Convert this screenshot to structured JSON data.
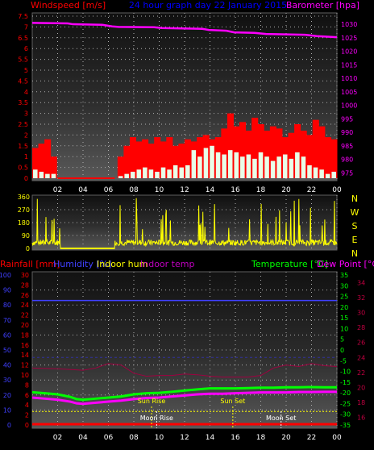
{
  "header": {
    "left": "Windspeed [m/s]",
    "center": "24 hour graph day  22 January 2015",
    "right": "Barometer [hpa]"
  },
  "colors": {
    "wind": "#ff0000",
    "barometer": "#ff00ff",
    "title": "#0000ff",
    "direction": "#ffff00",
    "humidity": "#4040ff",
    "temperature": "#00ff00",
    "dewpoint": "#ff00ff",
    "indoor_temp": "#c000c0",
    "indoor_hum": "#ffff00",
    "rain": "#ff0000",
    "sun": "#ffff00",
    "moon": "#ffffff"
  },
  "time_ticks": [
    "02",
    "04",
    "06",
    "08",
    "10",
    "12",
    "14",
    "16",
    "18",
    "20",
    "22",
    "00"
  ],
  "chart_data": [
    {
      "type": "bar",
      "name": "wind",
      "y_ticks": [
        "0",
        "0.5",
        "1",
        "1.5",
        "2",
        "2.5",
        "3",
        "3.5",
        "4",
        "4.5",
        "5",
        "5.5",
        "6",
        "6.5",
        "7",
        "7.5"
      ],
      "ylim": [
        0,
        7.5
      ],
      "y2_ticks": [
        "975",
        "980",
        "985",
        "990",
        "995",
        "1000",
        "1005",
        "1010",
        "1015",
        "1020",
        "1025",
        "1030"
      ],
      "y2lim": [
        973,
        1033
      ],
      "wind_gust": [
        1.4,
        1.6,
        1.8,
        1.0,
        0,
        0,
        0,
        0,
        0,
        0,
        0,
        0,
        0,
        0,
        1.0,
        1.5,
        1.9,
        1.7,
        1.8,
        1.6,
        1.9,
        1.7,
        1.9,
        1.5,
        1.6,
        1.8,
        1.7,
        1.9,
        2.0,
        1.8,
        1.9,
        2.3,
        3.0,
        2.4,
        2.6,
        2.2,
        2.8,
        2.5,
        2.2,
        2.4,
        2.3,
        1.9,
        2.1,
        2.5,
        2.2,
        2.0,
        2.7,
        2.4,
        1.9,
        1.8
      ],
      "wind_avg": [
        0.4,
        0.3,
        0.2,
        0.2,
        0,
        0,
        0,
        0,
        0,
        0,
        0,
        0,
        0,
        0,
        0.1,
        0.2,
        0.3,
        0.4,
        0.5,
        0.4,
        0.3,
        0.5,
        0.4,
        0.6,
        0.5,
        0.6,
        1.3,
        1.0,
        1.4,
        1.5,
        1.2,
        1.1,
        1.3,
        1.2,
        1.0,
        1.1,
        0.9,
        1.2,
        1.0,
        0.8,
        1.0,
        1.1,
        0.9,
        1.2,
        1.0,
        0.6,
        0.5,
        0.4,
        0.2,
        0.3
      ],
      "barometer_x": [
        0,
        2.8,
        3.2,
        5.5,
        6.3,
        6.8,
        9.6,
        10.2,
        13.4,
        13.9,
        15.3,
        15.9,
        17.5,
        18.4,
        21.5,
        22.4,
        24
      ],
      "barometer_y": [
        1030.5,
        1030.3,
        1030.0,
        1029.8,
        1029.2,
        1029.0,
        1028.9,
        1028.6,
        1028.3,
        1027.9,
        1027.6,
        1027.0,
        1026.8,
        1026.4,
        1026.1,
        1025.6,
        1025.2
      ]
    },
    {
      "type": "line",
      "name": "wind-direction",
      "y_ticks": [
        "0",
        "90",
        "180",
        "270",
        "360"
      ],
      "ylim": [
        0,
        360
      ],
      "compass_labels": [
        "N",
        "W",
        "S",
        "E",
        "N"
      ]
    },
    {
      "type": "line",
      "name": "temperature-humidity",
      "header_labels": [
        "Rainfall [mm]",
        "Humidity [%]",
        "Indoor hum",
        "Indoor temp",
        "Temperature [°C]",
        "Dew Point [°C]"
      ],
      "humidity_ticks": [
        "0",
        "10",
        "20",
        "30",
        "40",
        "50",
        "60",
        "70",
        "80",
        "90",
        "100"
      ],
      "rain_ticks": [
        "0",
        "2",
        "4",
        "6",
        "8",
        "10",
        "12",
        "14",
        "16",
        "18",
        "20",
        "22",
        "24",
        "26",
        "28",
        "30"
      ],
      "temp_ticks": [
        "-35",
        "-30",
        "-25",
        "-20",
        "-15",
        "-10",
        "-5",
        "0",
        "5",
        "10",
        "15",
        "20",
        "25",
        "30",
        "35"
      ],
      "indoor_ticks": [
        "16",
        "18",
        "20",
        "22",
        "24",
        "26",
        "28",
        "30",
        "32",
        "34"
      ],
      "temperature_x": [
        0,
        1,
        2,
        3,
        3.5,
        4,
        5,
        6,
        7,
        8,
        9,
        10,
        11,
        12,
        13,
        14,
        15,
        16,
        17,
        18,
        19,
        20,
        21,
        22,
        23,
        24
      ],
      "temperature_y": [
        -19.7,
        -20.2,
        -20.7,
        -21.9,
        -22.9,
        -23.2,
        -22.7,
        -22.2,
        -21.7,
        -20.7,
        -20.2,
        -20.0,
        -19.5,
        -18.9,
        -18.4,
        -17.9,
        -17.9,
        -17.9,
        -17.8,
        -17.6,
        -17.6,
        -17.4,
        -17.4,
        -17.3,
        -17.4,
        -17.4
      ],
      "dewpoint_x": [
        0,
        1,
        2,
        3,
        3.5,
        4,
        5,
        6,
        7,
        8,
        9,
        10,
        11,
        12,
        13,
        14,
        15,
        16,
        17,
        18,
        19,
        20,
        21,
        22,
        23,
        24
      ],
      "dewpoint_y": [
        -22.2,
        -22.7,
        -23.2,
        -24.1,
        -24.9,
        -25.1,
        -24.6,
        -24.1,
        -23.6,
        -22.9,
        -22.4,
        -22.2,
        -21.7,
        -21.2,
        -20.7,
        -20.4,
        -20.4,
        -20.2,
        -20.0,
        -19.8,
        -19.8,
        -19.8,
        -19.6,
        -19.6,
        -19.5,
        -19.5
      ],
      "humidity_value": 83,
      "indoor_hum_value": 9,
      "rainfall_value": 0,
      "indoor_temp_x": [
        0,
        2,
        4,
        5,
        6,
        7,
        8,
        9,
        10,
        11,
        12,
        13,
        14,
        15,
        16,
        17,
        18,
        19,
        20,
        21,
        22,
        23,
        24
      ],
      "indoor_temp_y": [
        22.6,
        22.5,
        22.3,
        22.6,
        23.2,
        23.0,
        21.9,
        21.5,
        21.6,
        21.6,
        21.8,
        21.7,
        21.5,
        21.4,
        21.4,
        21.4,
        21.6,
        22.6,
        23.0,
        22.8,
        23.2,
        22.9,
        22.8
      ],
      "events": [
        {
          "label": "Sun Rise",
          "hour": 9.4,
          "row": "top"
        },
        {
          "label": "Sun Set",
          "hour": 15.8,
          "row": "top"
        },
        {
          "label": "Moon Rise",
          "hour": 9.8,
          "row": "bottom"
        },
        {
          "label": "Moon Set",
          "hour": 19.6,
          "row": "bottom"
        }
      ]
    }
  ]
}
